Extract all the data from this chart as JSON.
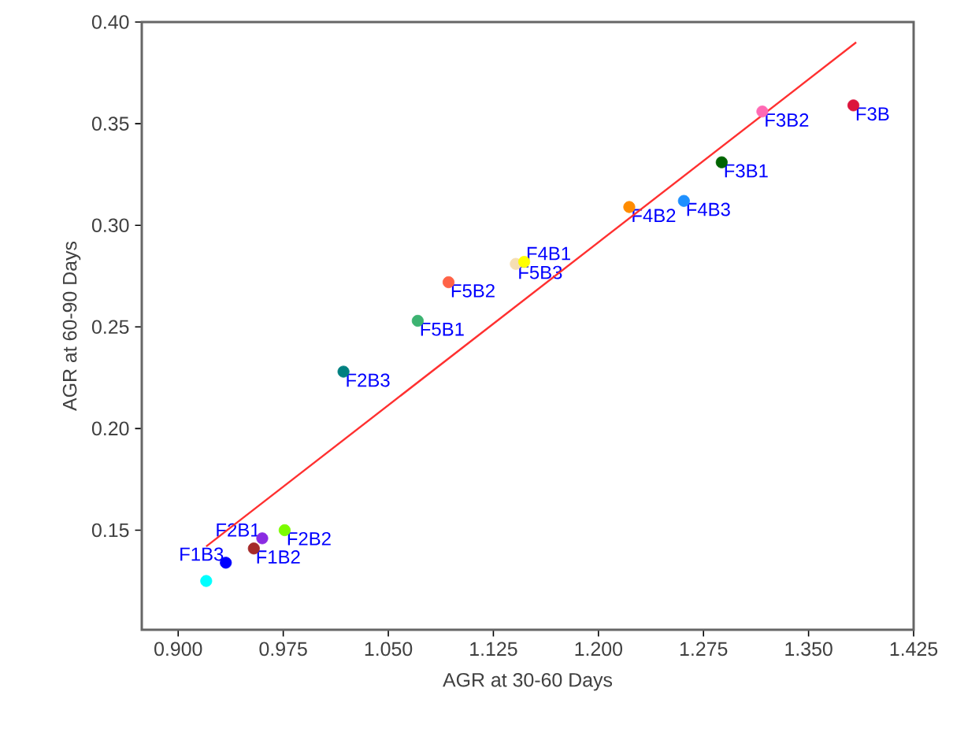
{
  "chart_data": {
    "type": "scatter",
    "xlabel": "AGR at 30-60 Days",
    "ylabel": "AGR at 60-90 Days",
    "xlim": [
      0.874,
      1.425
    ],
    "ylim": [
      0.101,
      0.4
    ],
    "xticks": [
      {
        "value": 0.9,
        "label": "0.900"
      },
      {
        "value": 0.975,
        "label": "0.975"
      },
      {
        "value": 1.05,
        "label": "1.050"
      },
      {
        "value": 1.125,
        "label": "1.125"
      },
      {
        "value": 1.2,
        "label": "1.200"
      },
      {
        "value": 1.275,
        "label": "1.275"
      },
      {
        "value": 1.35,
        "label": "1.350"
      },
      {
        "value": 1.425,
        "label": "1.425"
      }
    ],
    "yticks": [
      {
        "value": 0.15,
        "label": "0.15"
      },
      {
        "value": 0.2,
        "label": "0.20"
      },
      {
        "value": 0.25,
        "label": "0.25"
      },
      {
        "value": 0.3,
        "label": "0.30"
      },
      {
        "value": 0.35,
        "label": "0.35"
      },
      {
        "value": 0.4,
        "label": "0.40"
      }
    ],
    "grid": false,
    "legend": false,
    "series": [
      {
        "name": "F3B",
        "color": "#dc143c",
        "x": [
          1.382
        ],
        "values": [
          0.359
        ]
      },
      {
        "name": "F3B2",
        "color": "#ff69b4",
        "x": [
          1.317
        ],
        "values": [
          0.356
        ]
      },
      {
        "name": "F3B1",
        "color": "#006400",
        "x": [
          1.288
        ],
        "values": [
          0.331
        ]
      },
      {
        "name": "F4B2",
        "color": "#ff8c00",
        "x": [
          1.222
        ],
        "values": [
          0.309
        ]
      },
      {
        "name": "F4B3",
        "color": "#1e90ff",
        "x": [
          1.261
        ],
        "values": [
          0.312
        ]
      },
      {
        "name": "F5B3",
        "color": "#f5deb3",
        "x": [
          1.141
        ],
        "values": [
          0.281
        ]
      },
      {
        "name": "F4B1",
        "color": "#ffff00",
        "x": [
          1.147
        ],
        "values": [
          0.282
        ]
      },
      {
        "name": "F5B2",
        "color": "#ff6347",
        "x": [
          1.093
        ],
        "values": [
          0.272
        ]
      },
      {
        "name": "F5B1",
        "color": "#3cb371",
        "x": [
          1.071
        ],
        "values": [
          0.253
        ]
      },
      {
        "name": "F2B3",
        "color": "#008080",
        "x": [
          1.018
        ],
        "values": [
          0.228
        ]
      },
      {
        "name": "F2B2",
        "color": "#7cfc00",
        "x": [
          0.976
        ],
        "values": [
          0.15
        ]
      },
      {
        "name": "F2B1",
        "color": "#8a2be2",
        "x": [
          0.96
        ],
        "values": [
          0.146
        ]
      },
      {
        "name": "F1B2",
        "color": "#a52a2a",
        "x": [
          0.954
        ],
        "values": [
          0.141
        ]
      },
      {
        "name": "F1B3",
        "color": "#0000ff",
        "x": [
          0.934
        ],
        "values": [
          0.134
        ]
      },
      {
        "color": "#00ffff",
        "x": [
          0.92
        ],
        "values": [
          0.125
        ]
      },
      {
        "type": "line",
        "color": "#ff3030",
        "line_style": "solid",
        "x": [
          0.92,
          1.384
        ],
        "values": [
          0.142,
          0.39
        ]
      }
    ]
  }
}
